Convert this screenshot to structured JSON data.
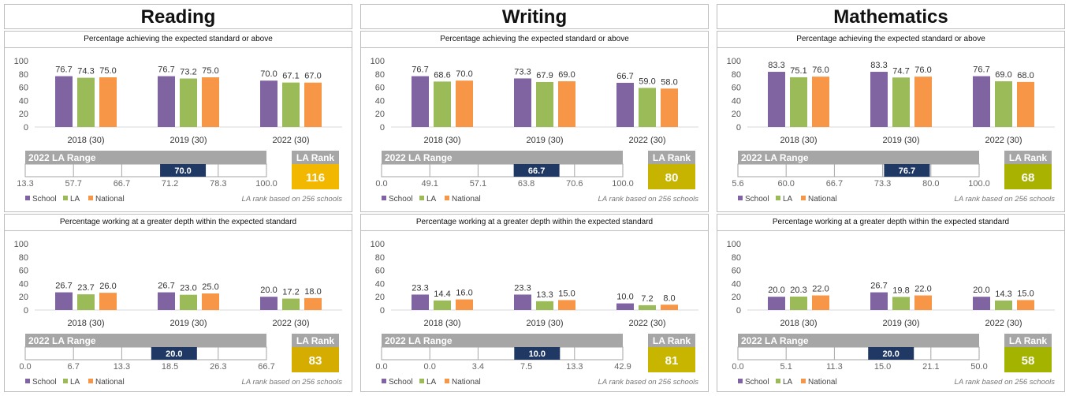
{
  "subjects": [
    {
      "title": "Reading",
      "charts": [
        {
          "header": "Percentage achieving the expected standard or above",
          "chart_data": {
            "type": "bar",
            "categories": [
              "2018 (30)",
              "2019 (30)",
              "2022 (30)"
            ],
            "series": [
              {
                "name": "School",
                "values": [
                  76.7,
                  76.7,
                  70.0
                ]
              },
              {
                "name": "LA",
                "values": [
                  74.3,
                  73.2,
                  67.1
                ]
              },
              {
                "name": "National",
                "values": [
                  75.0,
                  75.0,
                  67.0
                ]
              }
            ],
            "yticks": [
              "100",
              "80",
              "60",
              "40",
              "20",
              "0"
            ],
            "ylim": [
              0,
              100
            ],
            "legend_position": "bottom-left"
          },
          "range": {
            "label": "2022 LA Range",
            "ticks": [
              "13.3",
              "57.7",
              "66.7",
              "71.2",
              "78.3",
              "100.0"
            ],
            "marker": "70.0",
            "marker_fraction": 0.6538
          },
          "rank": {
            "label": "LA Rank",
            "value": "116",
            "color": "#f2b800"
          },
          "note": "LA rank based on 256 schools"
        },
        {
          "header": "Percentage working at a greater depth within the expected standard",
          "chart_data": {
            "type": "bar",
            "categories": [
              "2018 (30)",
              "2019 (30)",
              "2022 (30)"
            ],
            "series": [
              {
                "name": "School",
                "values": [
                  26.7,
                  26.7,
                  20.0
                ]
              },
              {
                "name": "LA",
                "values": [
                  23.7,
                  23.0,
                  17.2
                ]
              },
              {
                "name": "National",
                "values": [
                  26.0,
                  25.0,
                  18.0
                ]
              }
            ],
            "yticks": [
              "100",
              "80",
              "60",
              "40",
              "20",
              "0"
            ],
            "ylim": [
              0,
              100
            ],
            "legend_position": "bottom-left"
          },
          "range": {
            "label": "2022 LA Range",
            "ticks": [
              "0.0",
              "6.7",
              "13.3",
              "18.5",
              "26.3",
              "66.7"
            ],
            "marker": "20.0",
            "marker_fraction": 0.6171
          },
          "rank": {
            "label": "LA Rank",
            "value": "83",
            "color": "#d4ad00"
          },
          "note": "LA rank based on 256 schools"
        }
      ]
    },
    {
      "title": "Writing",
      "charts": [
        {
          "header": "Percentage achieving the expected standard or above",
          "chart_data": {
            "type": "bar",
            "categories": [
              "2018 (30)",
              "2019 (30)",
              "2022 (30)"
            ],
            "series": [
              {
                "name": "School",
                "values": [
                  76.7,
                  73.3,
                  66.7
                ]
              },
              {
                "name": "LA",
                "values": [
                  68.6,
                  67.9,
                  59.0
                ]
              },
              {
                "name": "National",
                "values": [
                  70.0,
                  69.0,
                  58.0
                ]
              }
            ],
            "yticks": [
              "100",
              "80",
              "60",
              "40",
              "20",
              "0"
            ],
            "ylim": [
              0,
              100
            ],
            "legend_position": "bottom-left"
          },
          "range": {
            "label": "2022 LA Range",
            "ticks": [
              "0.0",
              "49.1",
              "57.1",
              "63.8",
              "70.6",
              "100.0"
            ],
            "marker": "66.7",
            "marker_fraction": 0.6426
          },
          "rank": {
            "label": "LA Rank",
            "value": "80",
            "color": "#c6b400"
          },
          "note": "LA rank based on 256 schools"
        },
        {
          "header": "Percentage working at a greater depth within the expected standard",
          "chart_data": {
            "type": "bar",
            "categories": [
              "2018 (30)",
              "2019 (30)",
              "2022 (30)"
            ],
            "series": [
              {
                "name": "School",
                "values": [
                  23.3,
                  23.3,
                  10.0
                ]
              },
              {
                "name": "LA",
                "values": [
                  14.4,
                  13.3,
                  7.2
                ]
              },
              {
                "name": "National",
                "values": [
                  16.0,
                  15.0,
                  8.0
                ]
              }
            ],
            "yticks": [
              "100",
              "80",
              "60",
              "40",
              "20",
              "0"
            ],
            "ylim": [
              0,
              100
            ],
            "legend_position": "bottom-left"
          },
          "range": {
            "label": "2022 LA Range",
            "ticks": [
              "0.0",
              "0.0",
              "3.4",
              "7.5",
              "13.3",
              "42.9"
            ],
            "marker": "10.0",
            "marker_fraction": 0.6448
          },
          "rank": {
            "label": "LA Rank",
            "value": "81",
            "color": "#c8b500"
          },
          "note": "LA rank based on 256 schools"
        }
      ]
    },
    {
      "title": "Mathematics",
      "charts": [
        {
          "header": "Percentage achieving the expected standard or above",
          "chart_data": {
            "type": "bar",
            "categories": [
              "2018 (30)",
              "2019 (30)",
              "2022 (30)"
            ],
            "series": [
              {
                "name": "School",
                "values": [
                  83.3,
                  83.3,
                  76.7
                ]
              },
              {
                "name": "LA",
                "values": [
                  75.1,
                  74.7,
                  69.0
                ]
              },
              {
                "name": "National",
                "values": [
                  76.0,
                  76.0,
                  68.0
                ]
              }
            ],
            "yticks": [
              "100",
              "80",
              "60",
              "40",
              "20",
              "0"
            ],
            "ylim": [
              0,
              100
            ],
            "legend_position": "bottom-left"
          },
          "range": {
            "label": "2022 LA Range",
            "ticks": [
              "5.6",
              "60.0",
              "66.7",
              "73.3",
              "80.0",
              "100.0"
            ],
            "marker": "76.7",
            "marker_fraction": 0.7007
          },
          "rank": {
            "label": "LA Rank",
            "value": "68",
            "color": "#a9b200"
          },
          "note": "LA rank based on 256 schools"
        },
        {
          "header": "Percentage working at a greater depth within the expected standard",
          "chart_data": {
            "type": "bar",
            "categories": [
              "2018 (30)",
              "2019 (30)",
              "2022 (30)"
            ],
            "series": [
              {
                "name": "School",
                "values": [
                  20.0,
                  26.7,
                  20.0
                ]
              },
              {
                "name": "LA",
                "values": [
                  20.3,
                  19.8,
                  14.3
                ]
              },
              {
                "name": "National",
                "values": [
                  22.0,
                  22.0,
                  15.0
                ]
              }
            ],
            "yticks": [
              "100",
              "80",
              "60",
              "40",
              "20",
              "0"
            ],
            "ylim": [
              0,
              100
            ],
            "legend_position": "bottom-left"
          },
          "range": {
            "label": "2022 LA Range",
            "ticks": [
              "0.0",
              "5.1",
              "11.3",
              "15.0",
              "21.1",
              "50.0"
            ],
            "marker": "20.0",
            "marker_fraction": 0.6347
          },
          "rank": {
            "label": "LA Rank",
            "value": "58",
            "color": "#a3b300"
          },
          "note": "LA rank based on 256 schools"
        }
      ]
    }
  ],
  "series_colors": {
    "School": "#8064a2",
    "LA": "#9bbb59",
    "National": "#f79646"
  },
  "range_header_color": "#a6a6a6",
  "marker_color": "#1f3864"
}
